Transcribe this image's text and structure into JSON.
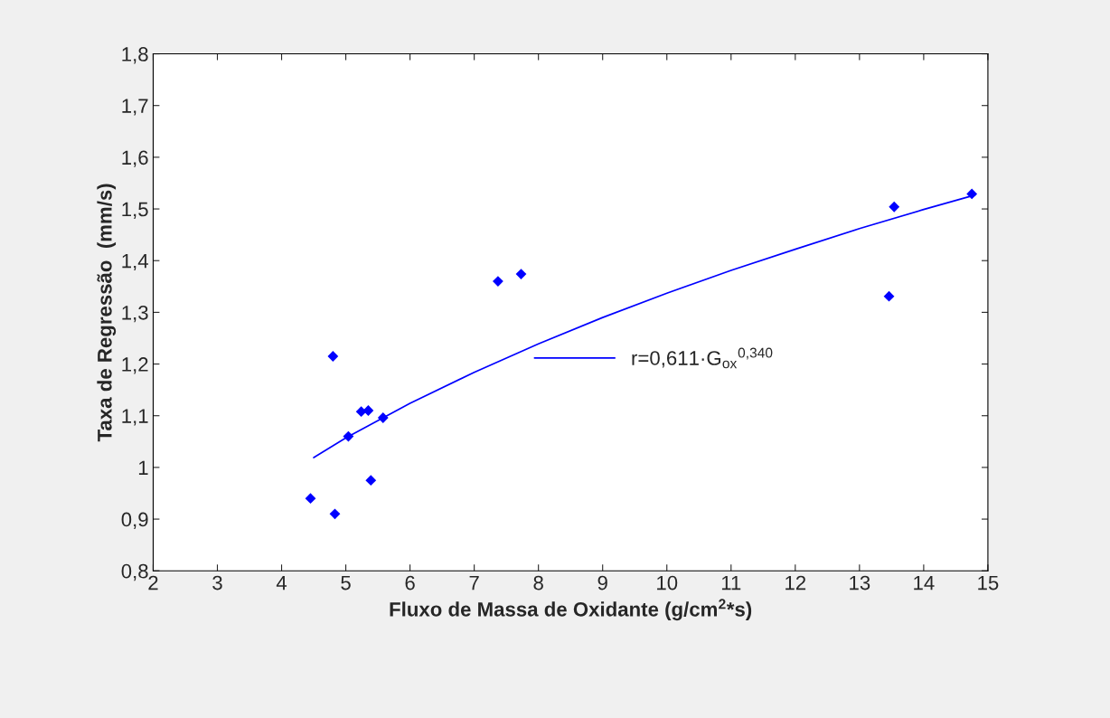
{
  "chart_data": {
    "type": "scatter",
    "xlabel": "Fluxo de Massa de Oxidante (g/cm$^{2}$*s)",
    "ylabel": "Taxa de Regressão  (mm/s)",
    "xlim": [
      2,
      15
    ],
    "xticks": [
      2,
      3,
      4,
      5,
      6,
      7,
      8,
      9,
      10,
      11,
      12,
      13,
      14,
      15
    ],
    "ylim": [
      0.8,
      1.8
    ],
    "yticks": [
      {
        "value": 0.8,
        "label": "0,8"
      },
      {
        "value": 0.9,
        "label": "0,9"
      },
      {
        "value": 1,
        "label": "1"
      },
      {
        "value": 1.1,
        "label": "1,1"
      },
      {
        "value": 1.2,
        "label": "1,2"
      },
      {
        "value": 1.3,
        "label": "1,3"
      },
      {
        "value": 1.4,
        "label": "1,4"
      },
      {
        "value": 1.5,
        "label": "1,5"
      },
      {
        "value": 1.6,
        "label": "1,6"
      },
      {
        "value": 1.7,
        "label": "1,7"
      },
      {
        "value": 1.8,
        "label": "1,8"
      }
    ],
    "grid": false,
    "legend": "center",
    "series": [
      {
        "color": "#0000ff",
        "marker": "diamond",
        "x": [
          4.45,
          4.83,
          4.8,
          5.04,
          5.24,
          5.35,
          5.39,
          5.58,
          7.37,
          7.73,
          13.46,
          13.54,
          14.75
        ],
        "values": [
          0.94,
          0.91,
          1.215,
          1.06,
          1.108,
          1.11,
          0.975,
          1.096,
          1.36,
          1.374,
          1.331,
          1.504,
          1.529
        ]
      },
      {
        "type": "line",
        "name": "r=0,611·G$_{ox}$$^{0,340}$",
        "color": "#0000ff",
        "marker": "none",
        "line_style": "solid",
        "x": [
          4.5,
          5,
          6,
          7,
          8,
          9,
          10,
          11,
          12,
          13,
          14,
          14.8
        ],
        "values": [
          1.019,
          1.057,
          1.124,
          1.184,
          1.239,
          1.29,
          1.337,
          1.381,
          1.422,
          1.462,
          1.499,
          1.527
        ]
      }
    ]
  }
}
